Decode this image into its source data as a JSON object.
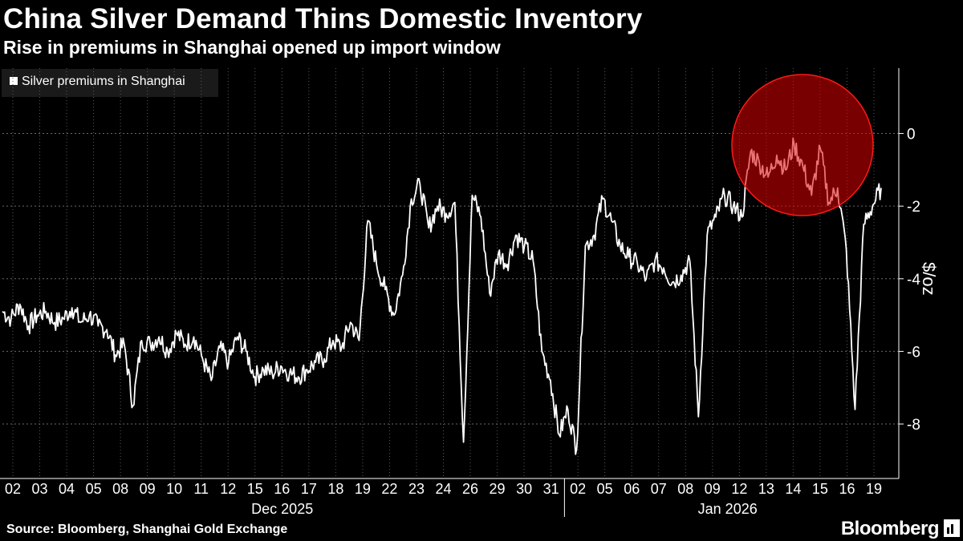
{
  "header": {
    "title": "China Silver Demand Thins Domestic Inventory",
    "subtitle": "Rise in premiums in Shanghai opened up import window"
  },
  "footer": {
    "source": "Source: Bloomberg, Shanghai Gold Exchange",
    "brand": "Bloomberg"
  },
  "colors": {
    "background": "#000000",
    "line": "#ffffff",
    "highlight": "#ff0000"
  },
  "chart_data": {
    "type": "line",
    "title": "",
    "xlabel": "",
    "ylabel": "$/oz",
    "ylim": [
      -9.5,
      1.8
    ],
    "yticks": [
      0,
      -2,
      -4,
      -6,
      -8
    ],
    "grid": true,
    "legend": "top-left",
    "x_day_labels": [
      "02",
      "03",
      "04",
      "05",
      "08",
      "09",
      "10",
      "11",
      "12",
      "15",
      "16",
      "17",
      "18",
      "19",
      "22",
      "23",
      "24",
      "26",
      "29",
      "30",
      "31",
      "02",
      "05",
      "06",
      "07",
      "08",
      "09",
      "12",
      "13",
      "14",
      "15",
      "16",
      "19"
    ],
    "x_month_labels": [
      "Dec 2025",
      "Jan 2026"
    ],
    "annotation": "red circle highlighting January 12–16 spike in premiums",
    "series": [
      {
        "name": "Silver premiums in Shanghai",
        "values": [
          -4.9,
          -5.1,
          -4.7,
          -5.3,
          -5.0,
          -4.9,
          -5.2,
          -5.1,
          -4.8,
          -5.2,
          -5.0,
          -5.3,
          -5.4,
          -6.1,
          -5.8,
          -7.5,
          -5.7,
          -5.8,
          -5.6,
          -6.0,
          -5.5,
          -5.8,
          -5.6,
          -6.2,
          -6.8,
          -5.9,
          -6.3,
          -5.6,
          -6.0,
          -6.7,
          -6.5,
          -6.6,
          -6.4,
          -6.6,
          -6.7,
          -6.5,
          -6.3,
          -6.2,
          -5.7,
          -5.9,
          -5.2,
          -5.7,
          -2.4,
          -3.6,
          -4.3,
          -5.0,
          -3.9,
          -1.8,
          -1.4,
          -2.6,
          -2.0,
          -2.2,
          -1.9,
          -8.5,
          -1.7,
          -2.3,
          -4.4,
          -3.3,
          -3.6,
          -2.8,
          -3.1,
          -3.5,
          -6.0,
          -6.8,
          -8.3,
          -7.6,
          -8.7,
          -3.1,
          -2.8,
          -1.8,
          -2.4,
          -3.1,
          -3.4,
          -3.6,
          -4.0,
          -3.5,
          -3.7,
          -4.1,
          -3.9,
          -3.5,
          -7.8,
          -2.8,
          -2.3,
          -1.7,
          -2.0,
          -2.3,
          -0.5,
          -0.8,
          -1.2,
          -0.6,
          -1.0,
          -0.3,
          -0.9,
          -1.7,
          -0.4,
          -1.9,
          -1.5,
          -3.2,
          -7.6,
          -2.5,
          -2.0,
          -1.5
        ]
      }
    ]
  }
}
